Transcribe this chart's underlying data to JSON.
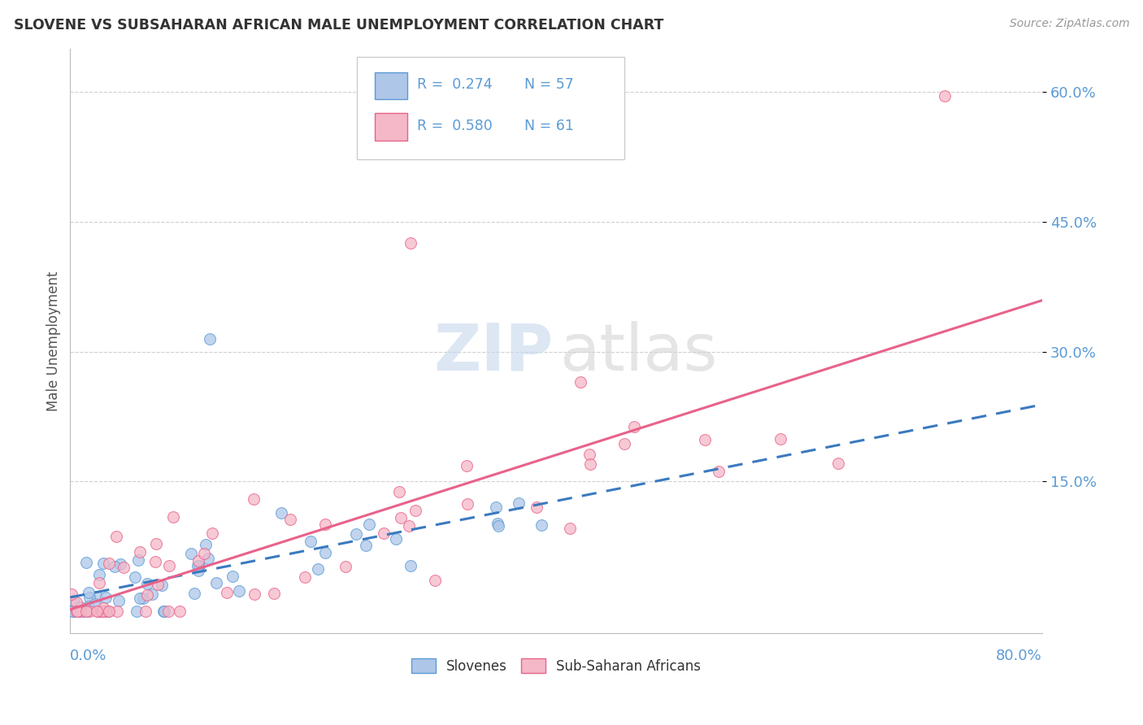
{
  "title": "SLOVENE VS SUBSAHARAN AFRICAN MALE UNEMPLOYMENT CORRELATION CHART",
  "source": "Source: ZipAtlas.com",
  "ylabel": "Male Unemployment",
  "xmin": 0.0,
  "xmax": 0.8,
  "ymin": -0.025,
  "ymax": 0.65,
  "slovene_color": "#aec6e8",
  "subsaharan_color": "#f5b8c8",
  "slovene_edge_color": "#5b9bd5",
  "subsaharan_edge_color": "#e8628a",
  "slovene_line_color": "#3a7abf",
  "subsaharan_line_color": "#e8628a",
  "background_color": "#ffffff",
  "grid_color": "#d0d0d0",
  "ytick_color": "#5b9bd5",
  "xlabel_color": "#5b9bd5",
  "legend_text_color": "#5b9bd5",
  "legend_n_color": "#333333",
  "watermark_zip_color": "#c5d8ec",
  "watermark_atlas_color": "#d5d5d5",
  "marker_size": 100
}
